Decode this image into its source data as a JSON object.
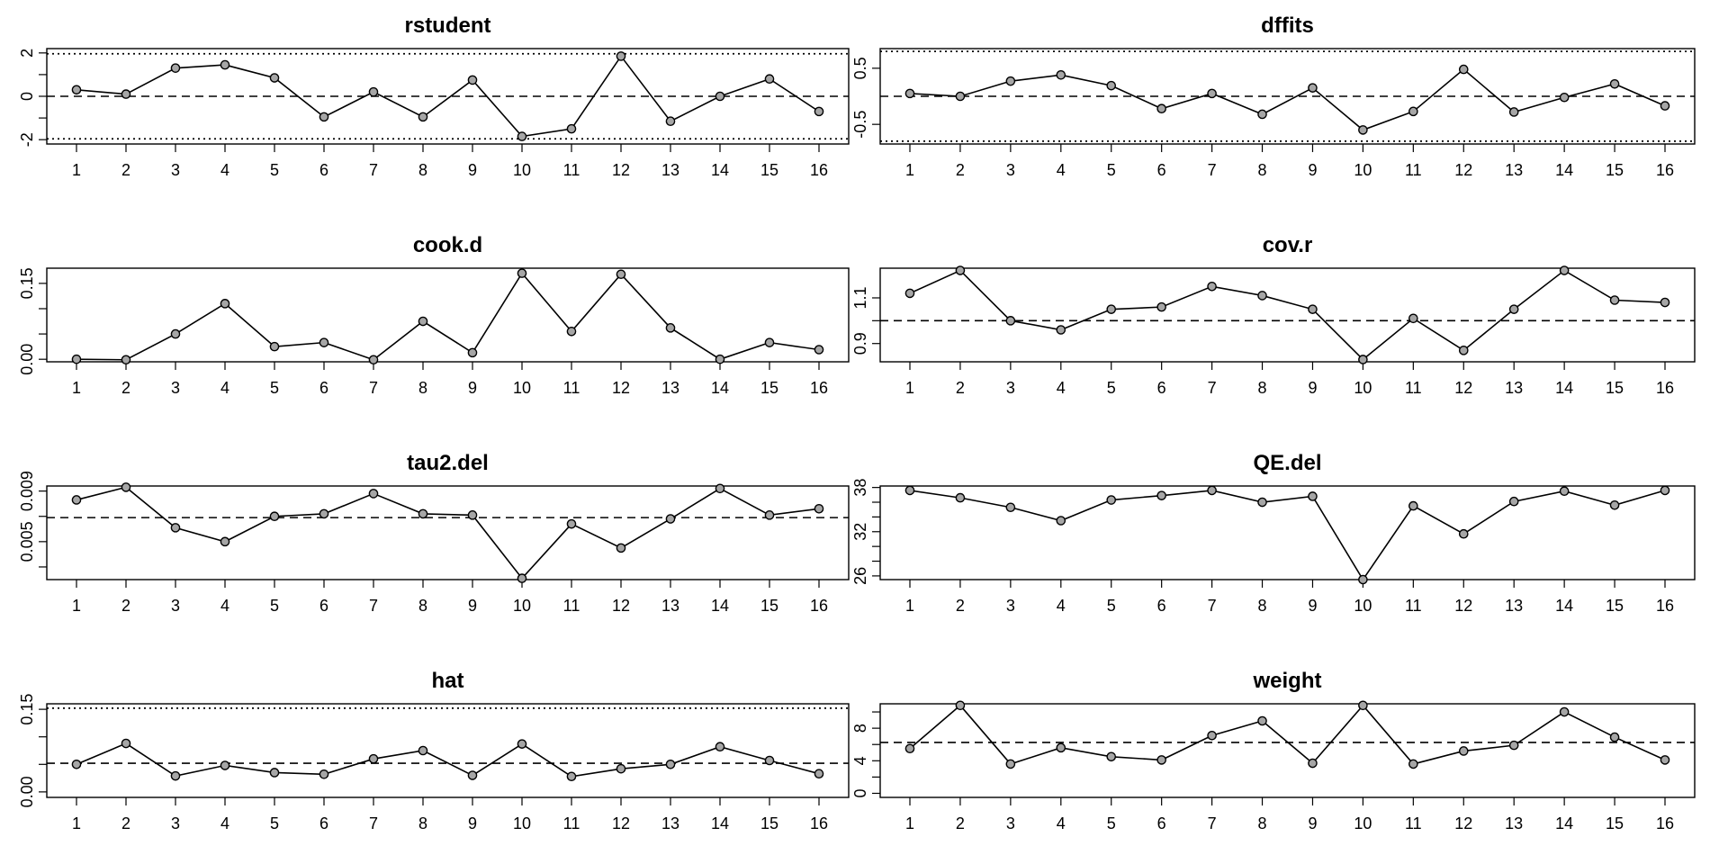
{
  "chart_data": [
    {
      "type": "line",
      "title": "rstudent",
      "x": [
        1,
        2,
        3,
        4,
        5,
        6,
        7,
        8,
        9,
        10,
        11,
        12,
        13,
        14,
        15,
        16
      ],
      "values": [
        0.3,
        0.1,
        1.3,
        1.45,
        0.85,
        -0.95,
        0.2,
        -0.95,
        0.75,
        -1.85,
        -1.5,
        1.85,
        -1.15,
        0.0,
        0.8,
        -0.7
      ],
      "ylim": [
        -2.2,
        2.2
      ],
      "yticks": [
        -2,
        0,
        2
      ],
      "minor_yticks": [
        -1,
        1
      ],
      "ref_dashed": 0,
      "ref_dotted": [
        -1.96,
        1.96
      ]
    },
    {
      "type": "line",
      "title": "dffits",
      "x": [
        1,
        2,
        3,
        4,
        5,
        6,
        7,
        8,
        9,
        10,
        11,
        12,
        13,
        14,
        15,
        16
      ],
      "values": [
        0.05,
        0.0,
        0.27,
        0.38,
        0.19,
        -0.22,
        0.05,
        -0.32,
        0.15,
        -0.6,
        -0.27,
        0.48,
        -0.28,
        -0.02,
        0.22,
        -0.17
      ],
      "ylim": [
        -0.85,
        0.85
      ],
      "yticks": [
        -0.5,
        0.5
      ],
      "ref_dashed": 0,
      "ref_dotted": [
        -0.8,
        0.8
      ]
    },
    {
      "type": "line",
      "title": "cook.d",
      "x": [
        1,
        2,
        3,
        4,
        5,
        6,
        7,
        8,
        9,
        10,
        11,
        12,
        13,
        14,
        15,
        16
      ],
      "values": [
        0.0,
        -0.001,
        0.05,
        0.11,
        0.025,
        0.033,
        -0.001,
        0.075,
        0.013,
        0.17,
        0.055,
        0.168,
        0.062,
        0.0,
        0.033,
        0.019
      ],
      "ylim": [
        -0.005,
        0.18
      ],
      "yticks": [
        0.0,
        0.05,
        0.1,
        0.15
      ],
      "ytick_labels": [
        "0.00",
        "",
        "",
        "0.15"
      ]
    },
    {
      "type": "line",
      "title": "cov.r",
      "x": [
        1,
        2,
        3,
        4,
        5,
        6,
        7,
        8,
        9,
        10,
        11,
        12,
        13,
        14,
        15,
        16
      ],
      "values": [
        1.12,
        1.22,
        1.0,
        0.96,
        1.05,
        1.06,
        1.15,
        1.11,
        1.05,
        0.83,
        1.01,
        0.87,
        1.05,
        1.22,
        1.09,
        1.08
      ],
      "ylim": [
        0.82,
        1.23
      ],
      "yticks": [
        0.9,
        1.0,
        1.1
      ],
      "ytick_labels": [
        "0.9",
        "",
        "1.1"
      ],
      "ref_dashed": 1.0
    },
    {
      "type": "line",
      "title": "tau2.del",
      "x": [
        1,
        2,
        3,
        4,
        5,
        6,
        7,
        8,
        9,
        10,
        11,
        12,
        13,
        14,
        15,
        16
      ],
      "values": [
        0.0083,
        0.0093,
        0.0061,
        0.005,
        0.007,
        0.0072,
        0.0088,
        0.0072,
        0.0071,
        0.0021,
        0.0064,
        0.0045,
        0.0068,
        0.0092,
        0.0071,
        0.0076
      ],
      "ylim": [
        0.002,
        0.0094
      ],
      "yticks": [
        0.003,
        0.005,
        0.007,
        0.009
      ],
      "ytick_labels": [
        "",
        "0.005",
        "",
        "0.009"
      ],
      "ref_dashed": 0.0069
    },
    {
      "type": "line",
      "title": "QE.del",
      "x": [
        1,
        2,
        3,
        4,
        5,
        6,
        7,
        8,
        9,
        10,
        11,
        12,
        13,
        14,
        15,
        16
      ],
      "values": [
        37.6,
        36.6,
        35.3,
        33.5,
        36.3,
        36.9,
        37.6,
        36,
        36.8,
        25.5,
        35.5,
        31.7,
        36.1,
        37.5,
        35.6,
        37.6
      ],
      "ylim": [
        25.5,
        38.2
      ],
      "yticks": [
        26,
        28,
        30,
        32,
        34,
        36,
        38
      ],
      "ytick_labels": [
        "26",
        "",
        "",
        "32",
        "",
        "",
        "38"
      ]
    },
    {
      "type": "line",
      "title": "hat",
      "x": [
        1,
        2,
        3,
        4,
        5,
        6,
        7,
        8,
        9,
        10,
        11,
        12,
        13,
        14,
        15,
        16
      ],
      "values": [
        0.05,
        0.088,
        0.029,
        0.048,
        0.035,
        0.032,
        0.06,
        0.075,
        0.03,
        0.087,
        0.028,
        0.042,
        0.05,
        0.082,
        0.057,
        0.033
      ],
      "ylim": [
        -0.01,
        0.16
      ],
      "yticks": [
        0.0,
        0.05,
        0.1,
        0.15
      ],
      "ytick_labels": [
        "0.00",
        "",
        "",
        "0.15"
      ],
      "ref_dashed": 0.052,
      "ref_dotted": [
        0.152
      ]
    },
    {
      "type": "line",
      "title": "weight",
      "x": [
        1,
        2,
        3,
        4,
        5,
        6,
        7,
        8,
        9,
        10,
        11,
        12,
        13,
        14,
        15,
        16
      ],
      "values": [
        5.5,
        10.8,
        3.6,
        5.6,
        4.5,
        4.1,
        7.1,
        8.9,
        3.7,
        10.8,
        3.6,
        5.2,
        5.9,
        10,
        6.9,
        4.1
      ],
      "ylim": [
        -0.5,
        11
      ],
      "yticks": [
        0,
        2,
        4,
        6,
        8,
        10
      ],
      "ytick_labels": [
        "0",
        "",
        "4",
        "",
        "8",
        ""
      ],
      "ref_dashed": 6.25
    }
  ]
}
